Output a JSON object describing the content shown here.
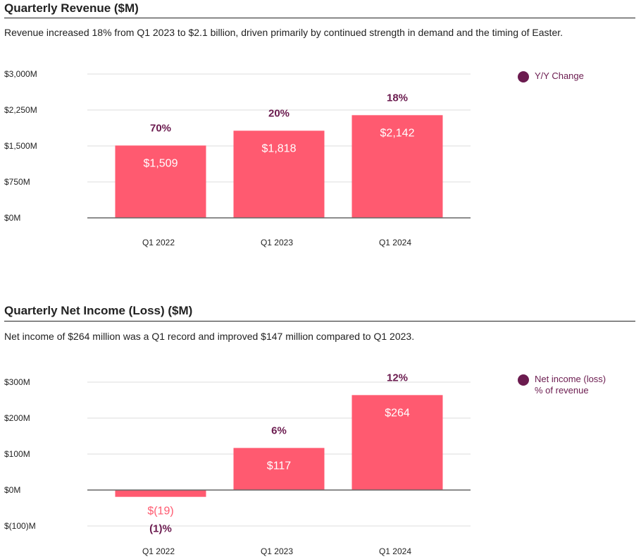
{
  "colors": {
    "bar": "#ff5a70",
    "pct_text": "#6b1b4f",
    "legend_dot": "#6b1b4f",
    "negative_value_text": "#ff5a70"
  },
  "revenue": {
    "title": "Quarterly Revenue ($M)",
    "subtitle": "Revenue increased 18% from Q1 2023 to $2.1 billion, driven primarily by continued strength in demand and the timing of Easter.",
    "legend": {
      "line1": "Y/Y Change",
      "line2": ""
    }
  },
  "net_income": {
    "title": "Quarterly Net Income (Loss) ($M)",
    "subtitle": "Net income of $264 million was a Q1 record and improved $147 million compared to Q1 2023.",
    "legend": {
      "line1": "Net income (loss)",
      "line2": "% of revenue"
    }
  },
  "chart_data": [
    {
      "type": "bar",
      "title": "Quarterly Revenue ($M)",
      "categories": [
        "Q1 2022",
        "Q1 2023",
        "Q1 2024"
      ],
      "values": [
        1509,
        1818,
        2142
      ],
      "value_labels": [
        "$1,509",
        "$1,818",
        "$2,142"
      ],
      "pct_labels": [
        "70%",
        "20%",
        "18%"
      ],
      "legend": "Y/Y Change",
      "ylim": [
        0,
        3000
      ],
      "yticks": [
        0,
        750,
        1500,
        2250,
        3000
      ],
      "ytick_labels": [
        "$0M",
        "$750M",
        "$1,500M",
        "$2,250M",
        "$3,000M"
      ],
      "grid": true,
      "legend_position": "top-right"
    },
    {
      "type": "bar",
      "title": "Quarterly Net Income (Loss) ($M)",
      "categories": [
        "Q1 2022",
        "Q1 2023",
        "Q1 2024"
      ],
      "values": [
        -19,
        117,
        264
      ],
      "value_labels": [
        "$(19)",
        "$117",
        "$264"
      ],
      "pct_labels": [
        "(1)%",
        "6%",
        "12%"
      ],
      "legend": "Net income (loss) % of revenue",
      "ylim": [
        -100,
        300
      ],
      "yticks": [
        -100,
        0,
        100,
        200,
        300
      ],
      "ytick_labels": [
        "$(100)M",
        "$0M",
        "$100M",
        "$200M",
        "$300M"
      ],
      "grid": true,
      "legend_position": "top-right"
    }
  ]
}
